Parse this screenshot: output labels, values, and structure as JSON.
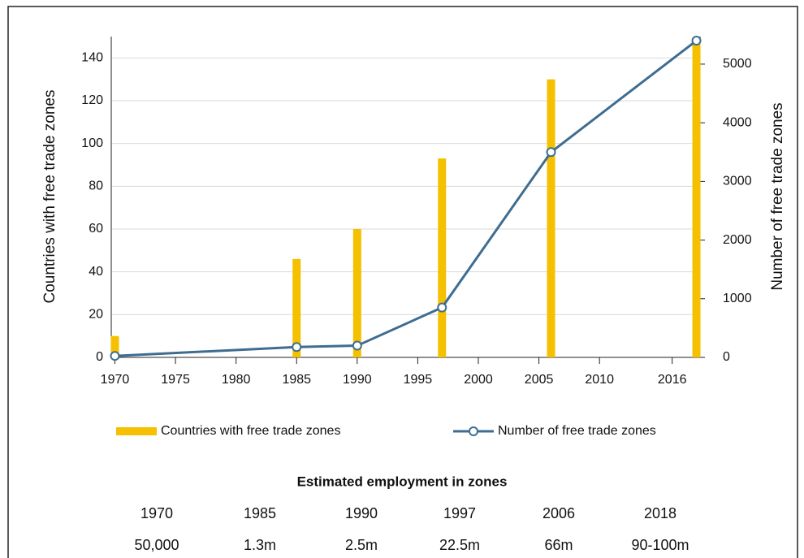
{
  "chart_data": {
    "type": "bar-line",
    "x": [
      1970,
      1985,
      1990,
      1997,
      2006,
      2018
    ],
    "series": [
      {
        "name": "Countries with free trade zones",
        "type": "bar",
        "color": "#f5c000",
        "values": [
          10,
          46,
          60,
          93,
          130,
          148
        ]
      },
      {
        "name": "Number of free trade zones",
        "type": "line",
        "color": "#3e6d91",
        "axis": "y2",
        "values": [
          25,
          176,
          200,
          850,
          3500,
          5400
        ]
      }
    ],
    "xlim": [
      1969.7,
      2018.3
    ],
    "xticks": [
      1970,
      1975,
      1980,
      1985,
      1990,
      1995,
      2000,
      2005,
      2010,
      2016
    ],
    "ylim": [
      0,
      150
    ],
    "yticks": [
      0,
      20,
      40,
      60,
      80,
      100,
      120,
      140
    ],
    "y2lim": [
      0,
      5470
    ],
    "y2ticks": [
      0,
      1000,
      2000,
      3000,
      4000,
      5000
    ],
    "ylabel": "Countries with free trade zones",
    "y2label": "Number of free trade zones",
    "grid": true,
    "legend": "bottom"
  },
  "table": {
    "title": "Estimated employment in zones",
    "rows": [
      [
        "1970",
        "1985",
        "1990",
        "1997",
        "2006",
        "2018"
      ],
      [
        "50,000",
        "1.3m",
        "2.5m",
        "22.5m",
        "66m",
        "90-100m"
      ]
    ]
  }
}
